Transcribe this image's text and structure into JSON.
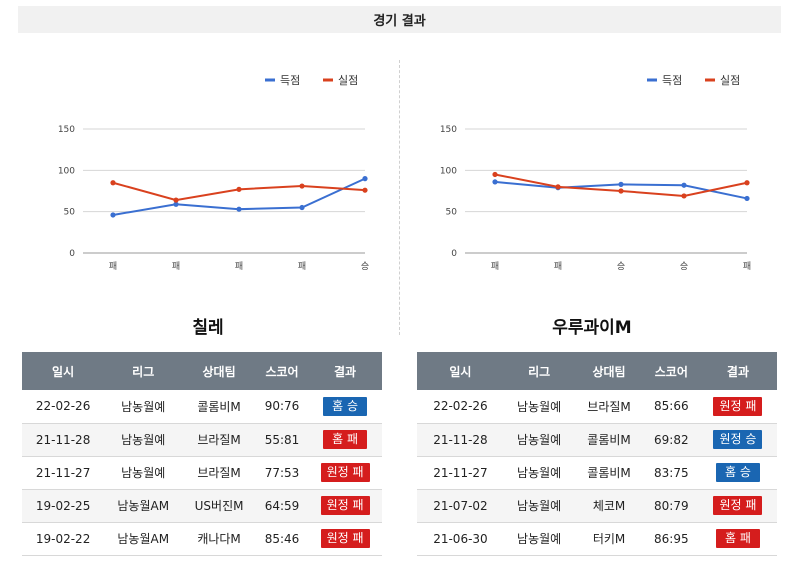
{
  "header": {
    "title": "경기 결과"
  },
  "colors": {
    "scored": "#3a6fd1",
    "conceded": "#d9411e",
    "win": "#1a66b2",
    "loss": "#d51d1d"
  },
  "chart_data": [
    {
      "type": "line",
      "team": "칠레",
      "categories": [
        "패",
        "패",
        "패",
        "패",
        "승"
      ],
      "series": [
        {
          "name": "득점",
          "values": [
            46,
            59,
            53,
            55,
            90
          ]
        },
        {
          "name": "실점",
          "values": [
            85,
            64,
            77,
            81,
            76
          ]
        }
      ],
      "yticks": [
        0,
        50,
        100,
        150
      ],
      "ylim": [
        0,
        150
      ],
      "grid": true,
      "legend": "top-right"
    },
    {
      "type": "line",
      "team": "우루과이M",
      "categories": [
        "패",
        "패",
        "승",
        "승",
        "패"
      ],
      "series": [
        {
          "name": "득점",
          "values": [
            86,
            79,
            83,
            82,
            66
          ]
        },
        {
          "name": "실점",
          "values": [
            95,
            80,
            75,
            69,
            85
          ]
        }
      ],
      "yticks": [
        0,
        50,
        100,
        150
      ],
      "ylim": [
        0,
        150
      ],
      "grid": true,
      "legend": "top-right"
    }
  ],
  "teams": [
    {
      "name": "칠레",
      "columns": [
        "일시",
        "리그",
        "상대팀",
        "스코어",
        "결과"
      ],
      "rows": [
        {
          "date": "22-02-26",
          "league": "남농월예",
          "opponent": "콜롬비M",
          "score": "90:76",
          "result": "홈 승",
          "outcome": "win"
        },
        {
          "date": "21-11-28",
          "league": "남농월예",
          "opponent": "브라질M",
          "score": "55:81",
          "result": "홈 패",
          "outcome": "loss"
        },
        {
          "date": "21-11-27",
          "league": "남농월예",
          "opponent": "브라질M",
          "score": "77:53",
          "result": "원정 패",
          "outcome": "loss"
        },
        {
          "date": "19-02-25",
          "league": "남농월AM",
          "opponent": "US버진M",
          "score": "64:59",
          "result": "원정 패",
          "outcome": "loss"
        },
        {
          "date": "19-02-22",
          "league": "남농월AM",
          "opponent": "캐나다M",
          "score": "85:46",
          "result": "원정 패",
          "outcome": "loss"
        }
      ]
    },
    {
      "name": "우루과이M",
      "columns": [
        "일시",
        "리그",
        "상대팀",
        "스코어",
        "결과"
      ],
      "rows": [
        {
          "date": "22-02-26",
          "league": "남농월예",
          "opponent": "브라질M",
          "score": "85:66",
          "result": "원정 패",
          "outcome": "loss"
        },
        {
          "date": "21-11-28",
          "league": "남농월예",
          "opponent": "콜롬비M",
          "score": "69:82",
          "result": "원정 승",
          "outcome": "win"
        },
        {
          "date": "21-11-27",
          "league": "남농월예",
          "opponent": "콜롬비M",
          "score": "83:75",
          "result": "홈 승",
          "outcome": "win"
        },
        {
          "date": "21-07-02",
          "league": "남농월예",
          "opponent": "체코M",
          "score": "80:79",
          "result": "원정 패",
          "outcome": "loss"
        },
        {
          "date": "21-06-30",
          "league": "남농월예",
          "opponent": "터키M",
          "score": "86:95",
          "result": "홈 패",
          "outcome": "loss"
        }
      ]
    }
  ]
}
